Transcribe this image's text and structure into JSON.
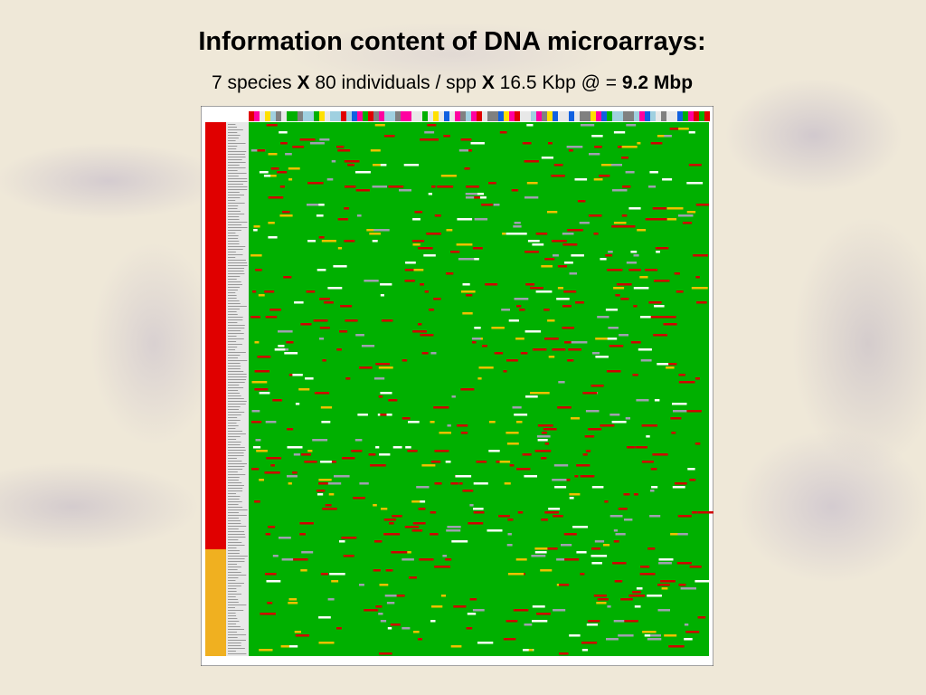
{
  "slide": {
    "title": "Information content of DNA microarrays:",
    "subtitle": [
      "7 species ",
      "X",
      " 80 individuals / spp ",
      "X",
      " 16.5 Kbp @ = ",
      "9.2 Mbp"
    ]
  }
}
